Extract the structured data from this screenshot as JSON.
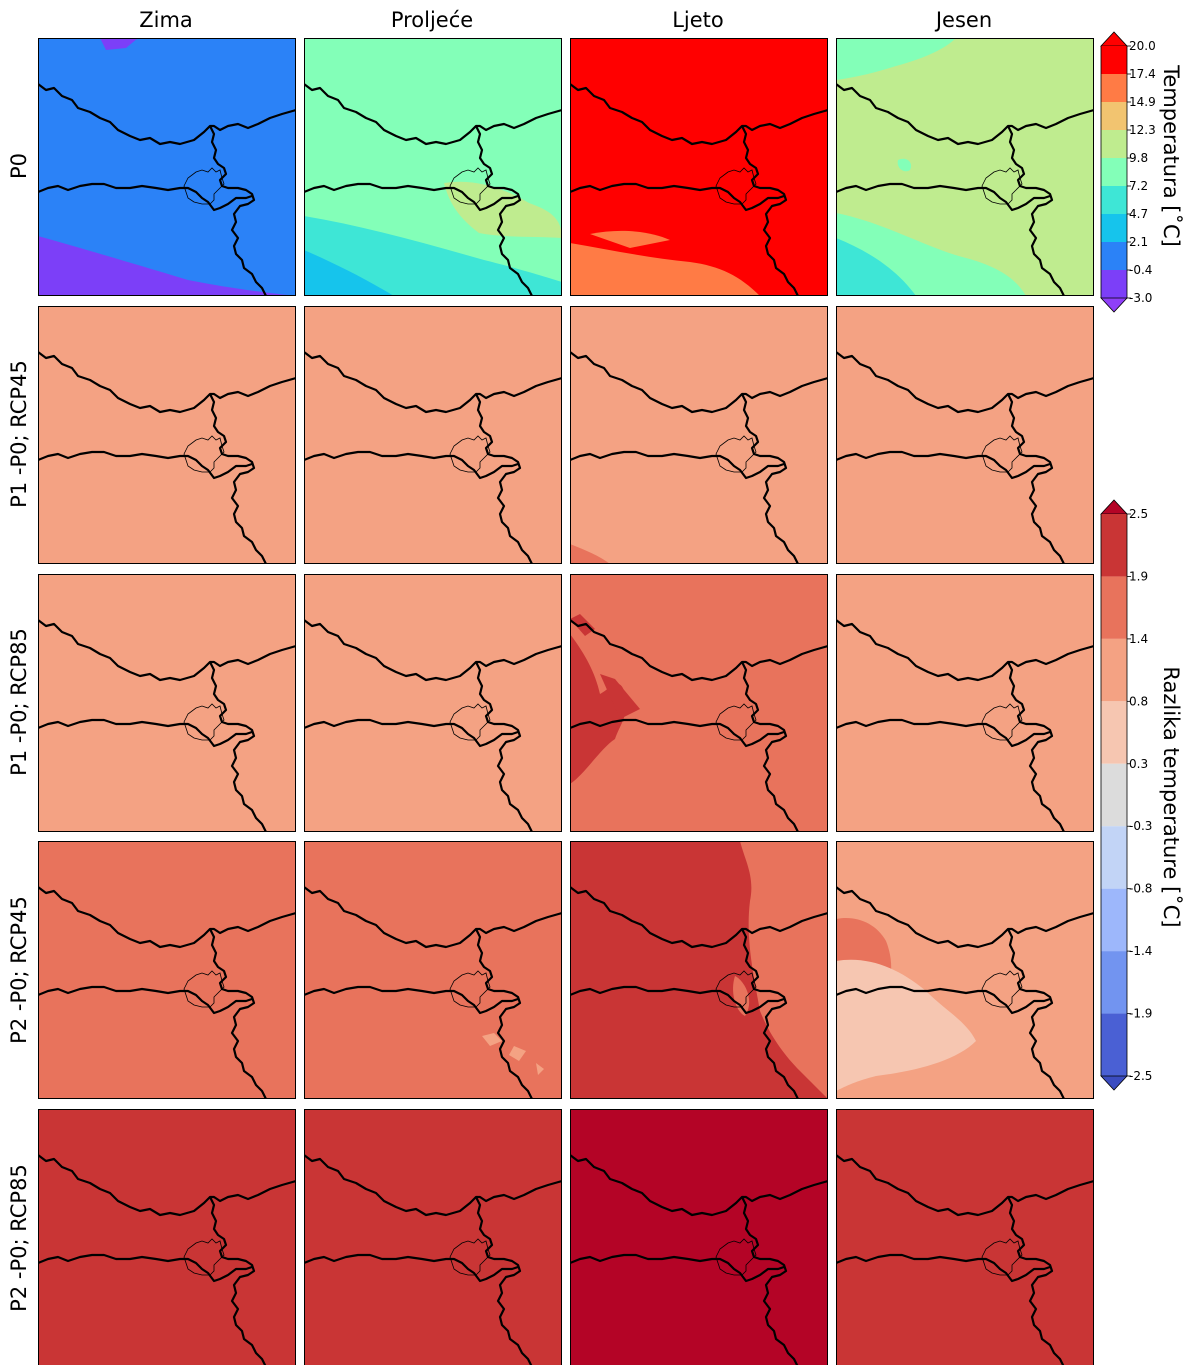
{
  "columns": [
    "Zima",
    "Proljeće",
    "Ljeto",
    "Jesen"
  ],
  "rows": [
    "P0",
    "P1 -P0; RCP45",
    "P1 -P0; RCP85",
    "P2 -P0; RCP45",
    "P2 -P0; RCP85"
  ],
  "colorbar_top": {
    "label": "Temperatura [$^\\circ$C]",
    "label_text": "Temperatura [˚C]",
    "ticks": [
      "20.0",
      "17.4",
      "14.9",
      "12.3",
      "9.8",
      "7.2",
      "4.7",
      "2.1",
      "-0.4",
      "-3.0"
    ],
    "colors_top_to_bottom": [
      "#ff0000",
      "#ff7b45",
      "#f2c470",
      "#bfec8f",
      "#83ffb8",
      "#3ee6d6",
      "#16c4ec",
      "#2b82f7",
      "#7c3ff8"
    ],
    "extend_top": "#ff0000",
    "extend_bottom": "#8f3ff8"
  },
  "colorbar_bottom": {
    "label_text": "Razlika temperature [˚C]",
    "ticks": [
      "2.5",
      "1.9",
      "1.4",
      "0.8",
      "0.3",
      "-0.3",
      "-0.8",
      "-1.4",
      "-1.9",
      "-2.5"
    ],
    "colors_top_to_bottom": [
      "#c93535",
      "#e8735c",
      "#f4a283",
      "#f6c6b1",
      "#dcdcdc",
      "#c2d4f6",
      "#9db7fb",
      "#7294f0",
      "#4a60d4"
    ],
    "extend_top": "#b40426",
    "extend_bottom": "#3b4cc0"
  },
  "chart_data": {
    "type": "heatmap",
    "title": "",
    "panels": [
      [
        {
          "base": "#2b82f7"
        },
        {
          "base": "#83ffb8"
        },
        {
          "base": "#ff0000"
        },
        {
          "base": "#bfec8f"
        }
      ],
      [
        {
          "base": "#f4a283"
        },
        {
          "base": "#f4a283"
        },
        {
          "base": "#f4a283"
        },
        {
          "base": "#f4a283"
        }
      ],
      [
        {
          "base": "#f4a283"
        },
        {
          "base": "#f4a283"
        },
        {
          "base": "#e8735c"
        },
        {
          "base": "#f4a283"
        }
      ],
      [
        {
          "base": "#e8735c"
        },
        {
          "base": "#e8735c"
        },
        {
          "base": "#c93535"
        },
        {
          "base": "#f4a283"
        }
      ],
      [
        {
          "base": "#c93535"
        },
        {
          "base": "#c93535"
        },
        {
          "base": "#b40426"
        },
        {
          "base": "#c93535"
        }
      ]
    ]
  }
}
